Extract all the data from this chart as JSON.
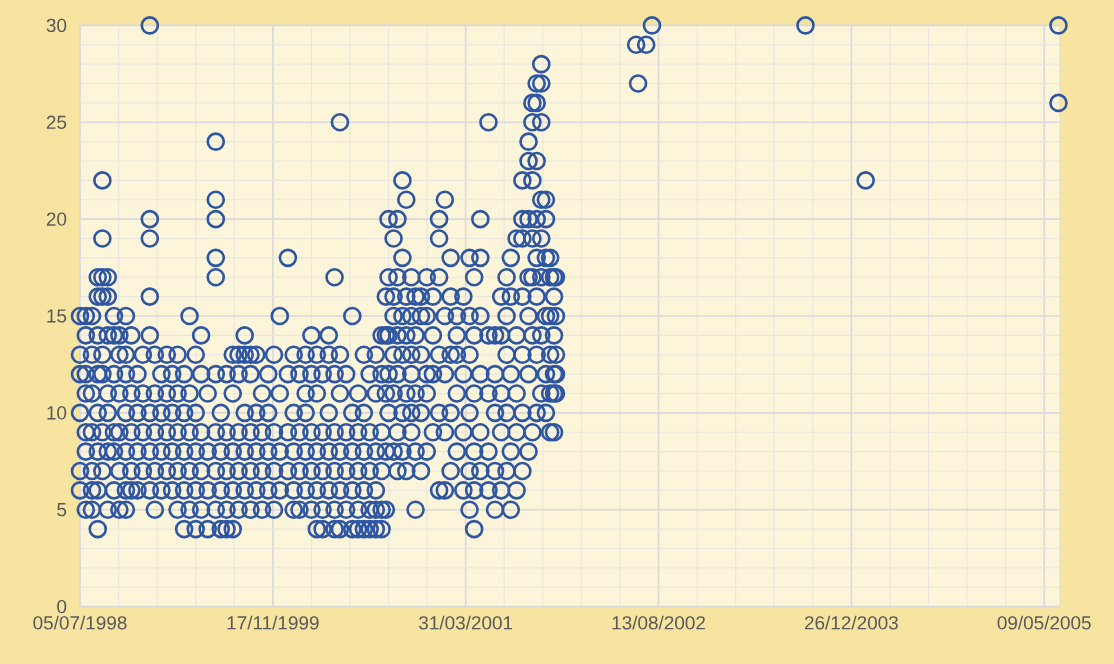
{
  "chart_data": {
    "type": "scatter",
    "color": "#2e56a3",
    "marker": "circle",
    "grid": true,
    "xlim": [
      "1998-07-05",
      "2005-06-19"
    ],
    "ylim": [
      0,
      30
    ],
    "xticks": [
      {
        "value": "1998-07-05",
        "label": "05/07/1998"
      },
      {
        "value": "1999-11-17",
        "label": "17/11/1999"
      },
      {
        "value": "2001-03-31",
        "label": "31/03/2001"
      },
      {
        "value": "2002-08-13",
        "label": "13/08/2002"
      },
      {
        "value": "2003-12-26",
        "label": "26/12/2003"
      },
      {
        "value": "2005-05-09",
        "label": "09/05/2005"
      }
    ],
    "yticks": [
      0,
      5,
      10,
      15,
      20,
      25,
      30
    ],
    "x": [
      "1998-07-05",
      "1998-07-05",
      "1998-07-05",
      "1998-07-05",
      "1998-07-05",
      "1998-07-05",
      "1998-07-20",
      "1998-07-20",
      "1998-07-20",
      "1998-07-20",
      "1998-07-20",
      "1998-07-20",
      "1998-07-20",
      "1998-08-05",
      "1998-08-05",
      "1998-08-05",
      "1998-08-05",
      "1998-08-05",
      "1998-08-05",
      "1998-08-05",
      "1998-08-20",
      "1998-08-20",
      "1998-08-20",
      "1998-08-20",
      "1998-08-20",
      "1998-08-20",
      "1998-08-20",
      "1998-08-20",
      "1998-09-01",
      "1998-09-01",
      "1998-09-01",
      "1998-09-01",
      "1998-09-01",
      "1998-09-01",
      "1998-09-01",
      "1998-09-01",
      "1998-09-15",
      "1998-09-15",
      "1998-09-15",
      "1998-09-15",
      "1998-09-15",
      "1998-09-15",
      "1998-09-15",
      "1998-10-01",
      "1998-10-01",
      "1998-10-01",
      "1998-10-01",
      "1998-10-01",
      "1998-10-01",
      "1998-10-15",
      "1998-10-15",
      "1998-10-15",
      "1998-10-15",
      "1998-10-15",
      "1998-10-15",
      "1998-11-01",
      "1998-11-01",
      "1998-11-01",
      "1998-11-01",
      "1998-11-01",
      "1998-11-01",
      "1998-11-01",
      "1998-11-15",
      "1998-11-15",
      "1998-11-15",
      "1998-11-15",
      "1998-11-15",
      "1998-12-01",
      "1998-12-01",
      "1998-12-01",
      "1998-12-01",
      "1998-12-15",
      "1998-12-15",
      "1998-12-15",
      "1998-12-15",
      "1999-01-02",
      "1999-01-02",
      "1999-01-02",
      "1999-01-02",
      "1999-01-02",
      "1999-01-02",
      "1999-01-02",
      "1999-01-02",
      "1999-01-15",
      "1999-01-15",
      "1999-01-15",
      "1999-01-15",
      "1999-01-15",
      "1999-02-01",
      "1999-02-01",
      "1999-02-01",
      "1999-02-01",
      "1999-02-15",
      "1999-02-15",
      "1999-02-15",
      "1999-02-15",
      "1999-03-01",
      "1999-03-01",
      "1999-03-01",
      "1999-03-01",
      "1999-03-15",
      "1999-03-15",
      "1999-03-15",
      "1999-03-15",
      "1999-03-15",
      "1999-04-01",
      "1999-04-01",
      "1999-04-01",
      "1999-04-01",
      "1999-04-01",
      "1999-04-15",
      "1999-04-15",
      "1999-04-15",
      "1999-04-15",
      "1999-04-15",
      "1999-05-01",
      "1999-05-01",
      "1999-05-01",
      "1999-05-01",
      "1999-05-01",
      "1999-05-15",
      "1999-05-15",
      "1999-05-15",
      "1999-05-15",
      "1999-05-15",
      "1999-06-01",
      "1999-06-01",
      "1999-06-01",
      "1999-06-01",
      "1999-06-22",
      "1999-06-22",
      "1999-06-22",
      "1999-06-22",
      "1999-06-22",
      "1999-06-22",
      "1999-06-22",
      "1999-06-22",
      "1999-06-22",
      "1999-07-05",
      "1999-07-05",
      "1999-07-05",
      "1999-07-05",
      "1999-07-20",
      "1999-07-20",
      "1999-07-20",
      "1999-07-20",
      "1999-07-20",
      "1999-08-05",
      "1999-08-05",
      "1999-08-05",
      "1999-08-05",
      "1999-08-05",
      "1999-08-20",
      "1999-08-20",
      "1999-08-20",
      "1999-08-20",
      "1999-08-20",
      "1999-09-05",
      "1999-09-05",
      "1999-09-05",
      "1999-09-05",
      "1999-09-05",
      "1999-09-20",
      "1999-09-20",
      "1999-09-20",
      "1999-09-20",
      "1999-09-20",
      "1999-10-05",
      "1999-10-05",
      "1999-10-05",
      "1999-10-05",
      "1999-10-20",
      "1999-10-20",
      "1999-10-20",
      "1999-10-20",
      "1999-11-05",
      "1999-11-05",
      "1999-11-05",
      "1999-11-05",
      "1999-11-20",
      "1999-11-20",
      "1999-11-20",
      "1999-11-20",
      "1999-12-05",
      "1999-12-05",
      "1999-12-05",
      "1999-12-05",
      "1999-12-26",
      "1999-12-26",
      "1999-12-26",
      "1999-12-26",
      "2000-01-10",
      "2000-01-10",
      "2000-01-10",
      "2000-01-10",
      "2000-01-10",
      "2000-01-25",
      "2000-01-25",
      "2000-01-25",
      "2000-01-25",
      "2000-02-10",
      "2000-02-10",
      "2000-02-10",
      "2000-02-10",
      "2000-02-10",
      "2000-02-25",
      "2000-02-25",
      "2000-02-25",
      "2000-02-25",
      "2000-02-25",
      "2000-03-10",
      "2000-03-10",
      "2000-03-10",
      "2000-03-10",
      "2000-03-10",
      "2000-03-25",
      "2000-03-25",
      "2000-03-25",
      "2000-03-25",
      "2000-03-25",
      "2000-04-10",
      "2000-04-10",
      "2000-04-10",
      "2000-04-10",
      "2000-04-10",
      "2000-04-25",
      "2000-04-25",
      "2000-04-25",
      "2000-04-25",
      "2000-04-25",
      "2000-04-25",
      "2000-05-09",
      "2000-05-09",
      "2000-05-09",
      "2000-05-09",
      "2000-05-09",
      "2000-05-09",
      "2000-05-25",
      "2000-05-25",
      "2000-05-25",
      "2000-05-25",
      "2000-06-10",
      "2000-06-10",
      "2000-06-10",
      "2000-06-10",
      "2000-06-10",
      "2000-06-25",
      "2000-06-25",
      "2000-06-25",
      "2000-06-25",
      "2000-06-25",
      "2000-07-10",
      "2000-07-10",
      "2000-07-10",
      "2000-07-10",
      "2000-07-10",
      "2000-07-25",
      "2000-07-25",
      "2000-07-25",
      "2000-07-25",
      "2000-07-25",
      "2000-08-10",
      "2000-08-10",
      "2000-08-10",
      "2000-08-10",
      "2000-08-10",
      "2000-08-10",
      "2000-08-25",
      "2000-08-25",
      "2000-08-25",
      "2000-08-25",
      "2000-08-25",
      "2000-08-25",
      "2000-09-05",
      "2000-09-05",
      "2000-09-05",
      "2000-09-05",
      "2000-09-05",
      "2000-09-12",
      "2000-09-12",
      "2000-09-12",
      "2000-09-12",
      "2000-09-12",
      "2000-09-25",
      "2000-09-25",
      "2000-09-25",
      "2000-09-25",
      "2000-09-25",
      "2000-09-25",
      "2000-10-05",
      "2000-10-05",
      "2000-10-05",
      "2000-10-05",
      "2000-10-05",
      "2000-10-05",
      "2000-10-18",
      "2000-10-18",
      "2000-10-18",
      "2000-10-18",
      "2000-10-18",
      "2000-10-18",
      "2000-10-28",
      "2000-10-28",
      "2000-10-28",
      "2000-10-28",
      "2000-10-28",
      "2000-11-10",
      "2000-11-10",
      "2000-11-10",
      "2000-11-10",
      "2000-11-10",
      "2000-11-10",
      "2000-11-21",
      "2000-11-21",
      "2000-11-21",
      "2000-11-21",
      "2000-11-21",
      "2000-12-05",
      "2000-12-05",
      "2000-12-05",
      "2000-12-05",
      "2000-12-05",
      "2000-12-20",
      "2000-12-20",
      "2000-12-20",
      "2000-12-20",
      "2000-12-20",
      "2001-01-05",
      "2001-01-05",
      "2001-01-05",
      "2001-01-05",
      "2001-01-21",
      "2001-01-21",
      "2001-01-21",
      "2001-01-21",
      "2001-01-21",
      "2001-01-21",
      "2001-02-05",
      "2001-02-05",
      "2001-02-05",
      "2001-02-05",
      "2001-02-05",
      "2001-02-20",
      "2001-02-20",
      "2001-02-20",
      "2001-02-20",
      "2001-02-20",
      "2001-03-08",
      "2001-03-08",
      "2001-03-08",
      "2001-03-08",
      "2001-03-08",
      "2001-03-25",
      "2001-03-25",
      "2001-03-25",
      "2001-03-25",
      "2001-04-10",
      "2001-04-10",
      "2001-04-10",
      "2001-04-10",
      "2001-04-10",
      "2001-04-10",
      "2001-04-22",
      "2001-04-22",
      "2001-04-22",
      "2001-04-22",
      "2001-04-22",
      "2001-04-22",
      "2001-05-08",
      "2001-05-08",
      "2001-05-08",
      "2001-05-08",
      "2001-05-08",
      "2001-05-08",
      "2001-05-29",
      "2001-05-29",
      "2001-05-29",
      "2001-05-29",
      "2001-05-29",
      "2001-06-15",
      "2001-06-15",
      "2001-06-15",
      "2001-06-15",
      "2001-06-15",
      "2001-07-01",
      "2001-07-01",
      "2001-07-01",
      "2001-07-01",
      "2001-07-01",
      "2001-07-15",
      "2001-07-15",
      "2001-07-15",
      "2001-07-15",
      "2001-07-15",
      "2001-07-26",
      "2001-07-26",
      "2001-07-26",
      "2001-07-26",
      "2001-07-26",
      "2001-08-10",
      "2001-08-10",
      "2001-08-10",
      "2001-08-10",
      "2001-08-10",
      "2001-08-25",
      "2001-08-25",
      "2001-08-25",
      "2001-08-25",
      "2001-08-25",
      "2001-08-25",
      "2001-08-25",
      "2001-09-10",
      "2001-09-10",
      "2001-09-10",
      "2001-09-10",
      "2001-09-10",
      "2001-09-10",
      "2001-09-10",
      "2001-09-20",
      "2001-09-20",
      "2001-09-20",
      "2001-09-20",
      "2001-09-20",
      "2001-09-20",
      "2001-09-20",
      "2001-10-01",
      "2001-10-01",
      "2001-10-01",
      "2001-10-01",
      "2001-10-01",
      "2001-10-01",
      "2001-10-01",
      "2001-10-01",
      "2001-10-13",
      "2001-10-13",
      "2001-10-13",
      "2001-10-13",
      "2001-10-13",
      "2001-10-13",
      "2001-10-13",
      "2001-10-13",
      "2001-10-25",
      "2001-10-25",
      "2001-10-25",
      "2001-10-25",
      "2001-10-25",
      "2001-10-25",
      "2001-11-05",
      "2001-11-05",
      "2001-11-05",
      "2001-11-05",
      "2001-11-05",
      "2001-11-05",
      "2001-11-15",
      "2001-11-15",
      "2001-11-15",
      "2001-11-15",
      "2001-11-15",
      "2001-11-15",
      "2001-11-20",
      "2001-11-20",
      "2001-11-20",
      "2001-11-20",
      "2001-11-20",
      "2002-06-16",
      "2002-06-21",
      "2002-07-12",
      "2002-07-27",
      "2003-08-29",
      "2004-02-01",
      "2005-06-15",
      "2005-06-15"
    ],
    "values": [
      6,
      7,
      10,
      12,
      13,
      15,
      5,
      8,
      9,
      11,
      12,
      14,
      15,
      5,
      6,
      7,
      9,
      11,
      13,
      15,
      4,
      6,
      8,
      10,
      12,
      14,
      16,
      17,
      7,
      9,
      12,
      13,
      16,
      17,
      19,
      22,
      5,
      8,
      10,
      11,
      14,
      16,
      17,
      6,
      8,
      9,
      12,
      14,
      15,
      5,
      7,
      9,
      11,
      13,
      14,
      5,
      6,
      8,
      10,
      12,
      13,
      15,
      6,
      7,
      9,
      11,
      14,
      6,
      8,
      10,
      12,
      7,
      9,
      11,
      13,
      6,
      8,
      10,
      14,
      16,
      19,
      20,
      30,
      5,
      7,
      9,
      11,
      13,
      6,
      8,
      10,
      12,
      7,
      9,
      11,
      13,
      6,
      8,
      10,
      12,
      5,
      7,
      9,
      11,
      13,
      4,
      6,
      8,
      10,
      12,
      5,
      7,
      9,
      11,
      15,
      4,
      6,
      8,
      10,
      13,
      5,
      7,
      9,
      12,
      14,
      4,
      6,
      8,
      11,
      5,
      7,
      9,
      12,
      17,
      18,
      20,
      21,
      24,
      4,
      6,
      8,
      10,
      4,
      5,
      7,
      9,
      12,
      4,
      6,
      8,
      11,
      13,
      5,
      7,
      9,
      12,
      13,
      6,
      8,
      10,
      13,
      14,
      5,
      7,
      9,
      12,
      13,
      6,
      8,
      10,
      13,
      5,
      7,
      9,
      11,
      6,
      8,
      10,
      12,
      5,
      7,
      9,
      13,
      6,
      8,
      11,
      15,
      7,
      9,
      12,
      18,
      5,
      6,
      8,
      10,
      13,
      5,
      7,
      9,
      12,
      6,
      8,
      10,
      11,
      13,
      5,
      7,
      9,
      12,
      14,
      4,
      6,
      8,
      11,
      13,
      4,
      5,
      7,
      9,
      12,
      6,
      8,
      10,
      13,
      14,
      4,
      5,
      7,
      9,
      12,
      17,
      4,
      6,
      8,
      11,
      13,
      25,
      5,
      7,
      9,
      12,
      4,
      6,
      8,
      10,
      15,
      4,
      5,
      7,
      9,
      11,
      4,
      6,
      8,
      10,
      13,
      4,
      5,
      7,
      9,
      12,
      4,
      5,
      6,
      8,
      11,
      13,
      4,
      5,
      7,
      9,
      12,
      14,
      5,
      8,
      11,
      14,
      16,
      10,
      12,
      14,
      17,
      20,
      8,
      11,
      13,
      15,
      16,
      19,
      7,
      9,
      12,
      14,
      17,
      20,
      8,
      10,
      13,
      15,
      18,
      22,
      7,
      11,
      14,
      16,
      21,
      9,
      10,
      12,
      13,
      15,
      17,
      5,
      8,
      11,
      14,
      16,
      7,
      10,
      13,
      15,
      16,
      8,
      11,
      12,
      15,
      17,
      9,
      12,
      14,
      16,
      6,
      10,
      13,
      17,
      19,
      20,
      6,
      9,
      12,
      15,
      21,
      7,
      10,
      13,
      16,
      18,
      8,
      11,
      13,
      14,
      15,
      6,
      9,
      12,
      16,
      5,
      7,
      10,
      13,
      15,
      18,
      4,
      6,
      8,
      11,
      14,
      17,
      7,
      9,
      12,
      15,
      18,
      20,
      6,
      8,
      11,
      14,
      25,
      5,
      7,
      10,
      12,
      14,
      6,
      9,
      11,
      14,
      16,
      7,
      10,
      13,
      15,
      17,
      5,
      8,
      12,
      16,
      18,
      6,
      9,
      11,
      14,
      19,
      7,
      10,
      13,
      16,
      19,
      20,
      22,
      8,
      12,
      15,
      17,
      20,
      23,
      24,
      9,
      14,
      17,
      19,
      22,
      25,
      26,
      10,
      13,
      16,
      18,
      20,
      23,
      26,
      27,
      11,
      14,
      17,
      19,
      21,
      25,
      27,
      28,
      10,
      12,
      15,
      18,
      20,
      21,
      9,
      11,
      13,
      15,
      17,
      18,
      9,
      11,
      12,
      14,
      16,
      17,
      11,
      12,
      13,
      15,
      17,
      29,
      27,
      29,
      30,
      30,
      22,
      30,
      26
    ]
  }
}
